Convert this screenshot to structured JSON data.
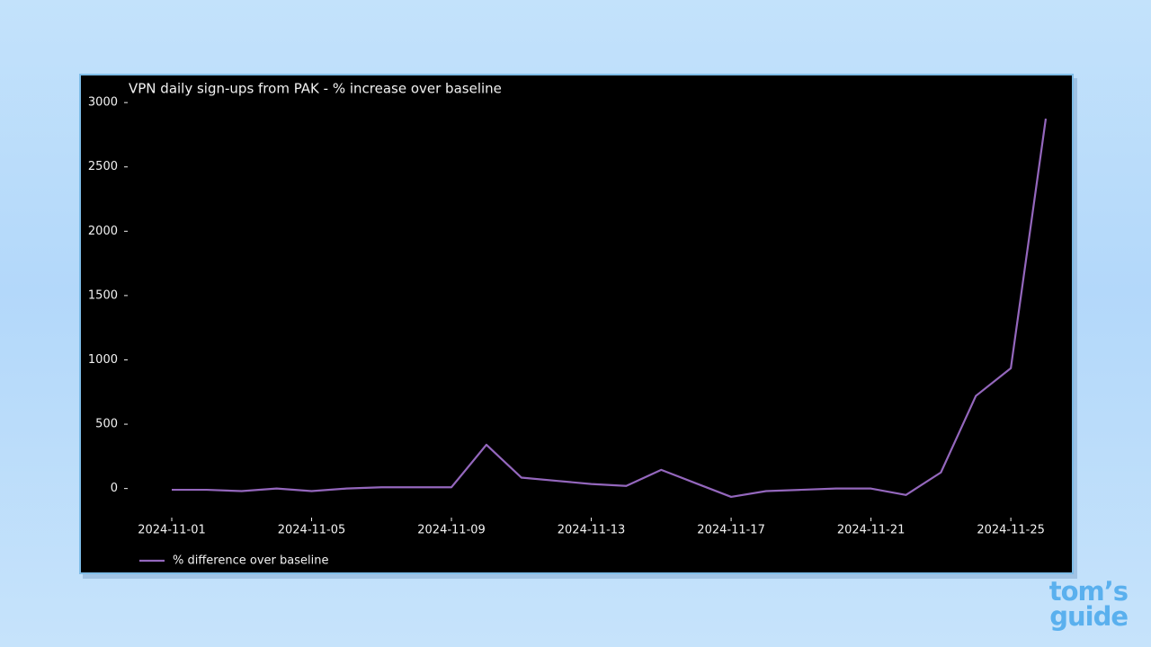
{
  "chart_data": {
    "type": "line",
    "title": "VPN daily sign-ups from PAK - % increase over baseline",
    "x": [
      "2024-11-01",
      "2024-11-02",
      "2024-11-03",
      "2024-11-04",
      "2024-11-05",
      "2024-11-06",
      "2024-11-07",
      "2024-11-08",
      "2024-11-09",
      "2024-11-10",
      "2024-11-11",
      "2024-11-12",
      "2024-11-13",
      "2024-11-14",
      "2024-11-15",
      "2024-11-16",
      "2024-11-17",
      "2024-11-18",
      "2024-11-19",
      "2024-11-20",
      "2024-11-21",
      "2024-11-22",
      "2024-11-23",
      "2024-11-24",
      "2024-11-25",
      "2024-11-26"
    ],
    "series": [
      {
        "name": "% difference over baseline",
        "color": "#9467bd",
        "values": [
          -10,
          -10,
          -20,
          0,
          -20,
          0,
          10,
          10,
          10,
          340,
          85,
          60,
          35,
          20,
          145,
          40,
          -65,
          -20,
          -10,
          0,
          0,
          -50,
          125,
          720,
          935,
          2875
        ]
      }
    ],
    "xticks": [
      "2024-11-01",
      "2024-11-05",
      "2024-11-09",
      "2024-11-13",
      "2024-11-17",
      "2024-11-21",
      "2024-11-25"
    ],
    "ylim": [
      -212,
      3022
    ],
    "yticks": [
      0,
      500,
      1000,
      1500,
      2000,
      2500,
      3000
    ],
    "grid": false,
    "legend": "bottom-left"
  },
  "logo": {
    "line1": "tom’s",
    "line2": "guide"
  }
}
